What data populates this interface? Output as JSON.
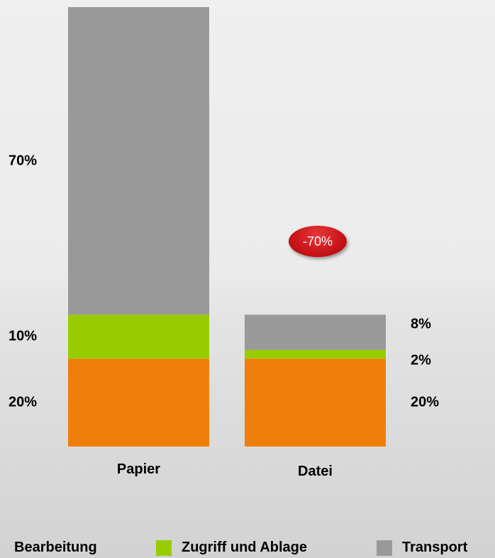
{
  "chart_data": {
    "type": "bar",
    "stacked": true,
    "categories": [
      "Papier",
      "Datei"
    ],
    "series": [
      {
        "name": "Bearbeitung",
        "color": "#ef7f0a",
        "values": [
          20,
          20
        ],
        "labels": [
          "20%",
          "20%"
        ]
      },
      {
        "name": "Zugriff und Ablage",
        "color": "#99cc00",
        "values": [
          10,
          2
        ],
        "labels": [
          "10%",
          "2%"
        ]
      },
      {
        "name": "Transport",
        "color": "#999999",
        "values": [
          70,
          8
        ],
        "labels": [
          "70%",
          "8%"
        ]
      }
    ],
    "ylim": [
      0,
      100
    ],
    "grid": false,
    "legend_position": "bottom",
    "annotation": "-70%"
  }
}
